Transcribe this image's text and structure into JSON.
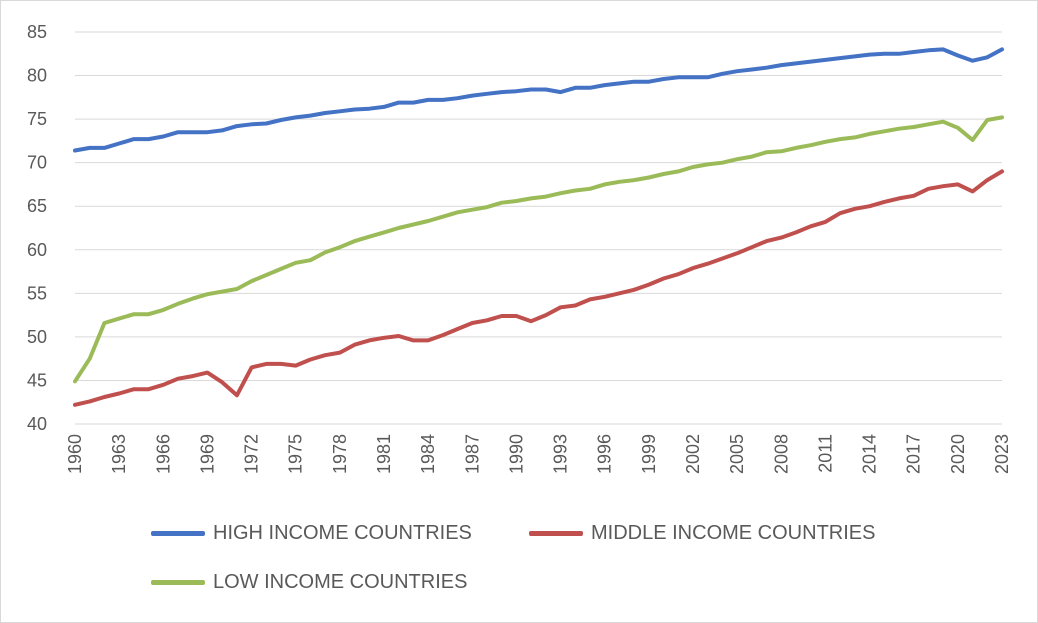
{
  "chart_data": {
    "type": "line",
    "title": "",
    "xlabel": "",
    "ylabel": "",
    "ylim": [
      40,
      85
    ],
    "yticks": [
      40,
      45,
      50,
      55,
      60,
      65,
      70,
      75,
      80,
      85
    ],
    "x_tick_labels": [
      "1960",
      "1963",
      "1966",
      "1969",
      "1972",
      "1975",
      "1978",
      "1981",
      "1984",
      "1987",
      "1990",
      "1993",
      "1996",
      "1999",
      "2002",
      "2005",
      "2008",
      "2011",
      "2014",
      "2017",
      "2020",
      "2023"
    ],
    "grid": "horizontal",
    "legend_position": "bottom",
    "x": [
      1960,
      1961,
      1962,
      1963,
      1964,
      1965,
      1966,
      1967,
      1968,
      1969,
      1970,
      1971,
      1972,
      1973,
      1974,
      1975,
      1976,
      1977,
      1978,
      1979,
      1980,
      1981,
      1982,
      1983,
      1984,
      1985,
      1986,
      1987,
      1988,
      1989,
      1990,
      1991,
      1992,
      1993,
      1994,
      1995,
      1996,
      1997,
      1998,
      1999,
      2000,
      2001,
      2002,
      2003,
      2004,
      2005,
      2006,
      2007,
      2008,
      2009,
      2010,
      2011,
      2012,
      2013,
      2014,
      2015,
      2016,
      2017,
      2018,
      2019,
      2020,
      2021,
      2022,
      2023
    ],
    "series": [
      {
        "name": "HIGH INCOME COUNTRIES",
        "color": "#4472c4",
        "values": [
          71.4,
          71.7,
          71.7,
          72.2,
          72.7,
          72.7,
          73.0,
          73.5,
          73.5,
          73.5,
          73.7,
          74.2,
          74.4,
          74.5,
          74.9,
          75.2,
          75.4,
          75.7,
          75.9,
          76.1,
          76.2,
          76.4,
          76.9,
          76.9,
          77.2,
          77.2,
          77.4,
          77.7,
          77.9,
          78.1,
          78.2,
          78.4,
          78.4,
          78.1,
          78.6,
          78.6,
          78.9,
          79.1,
          79.3,
          79.3,
          79.6,
          79.8,
          79.8,
          79.8,
          80.2,
          80.5,
          80.7,
          80.9,
          81.2,
          81.4,
          81.6,
          81.8,
          82.0,
          82.2,
          82.4,
          82.5,
          82.5,
          82.7,
          82.9,
          83.0,
          82.3,
          81.7,
          82.1,
          83.0
        ]
      },
      {
        "name": "MIDDLE INCOME COUNTRIES",
        "color": "#c0504d",
        "values": [
          42.2,
          42.6,
          43.1,
          43.5,
          44.0,
          44.0,
          44.5,
          45.2,
          45.5,
          45.9,
          44.8,
          43.3,
          46.5,
          46.9,
          46.9,
          46.7,
          47.4,
          47.9,
          48.2,
          49.1,
          49.6,
          49.9,
          50.1,
          49.6,
          49.6,
          50.2,
          50.9,
          51.6,
          51.9,
          52.4,
          52.4,
          51.8,
          52.5,
          53.4,
          53.6,
          54.3,
          54.6,
          55.0,
          55.4,
          56.0,
          56.7,
          57.2,
          57.9,
          58.4,
          59.0,
          59.6,
          60.3,
          61.0,
          61.4,
          62.0,
          62.7,
          63.2,
          64.2,
          64.7,
          65.0,
          65.5,
          65.9,
          66.2,
          67.0,
          67.3,
          67.5,
          66.7,
          68.0,
          69.0
        ]
      },
      {
        "name": "LOW INCOME COUNTRIES",
        "color": "#9bbb59",
        "values": [
          44.9,
          47.5,
          51.6,
          52.1,
          52.6,
          52.6,
          53.1,
          53.8,
          54.4,
          54.9,
          55.2,
          55.5,
          56.4,
          57.1,
          57.8,
          58.5,
          58.8,
          59.7,
          60.3,
          61.0,
          61.5,
          62.0,
          62.5,
          62.9,
          63.3,
          63.8,
          64.3,
          64.6,
          64.9,
          65.4,
          65.6,
          65.9,
          66.1,
          66.5,
          66.8,
          67.0,
          67.5,
          67.8,
          68.0,
          68.3,
          68.7,
          69.0,
          69.5,
          69.8,
          70.0,
          70.4,
          70.7,
          71.2,
          71.3,
          71.7,
          72.0,
          72.4,
          72.7,
          72.9,
          73.3,
          73.6,
          73.9,
          74.1,
          74.4,
          74.7,
          74.0,
          72.6,
          74.9,
          75.2
        ]
      }
    ]
  }
}
